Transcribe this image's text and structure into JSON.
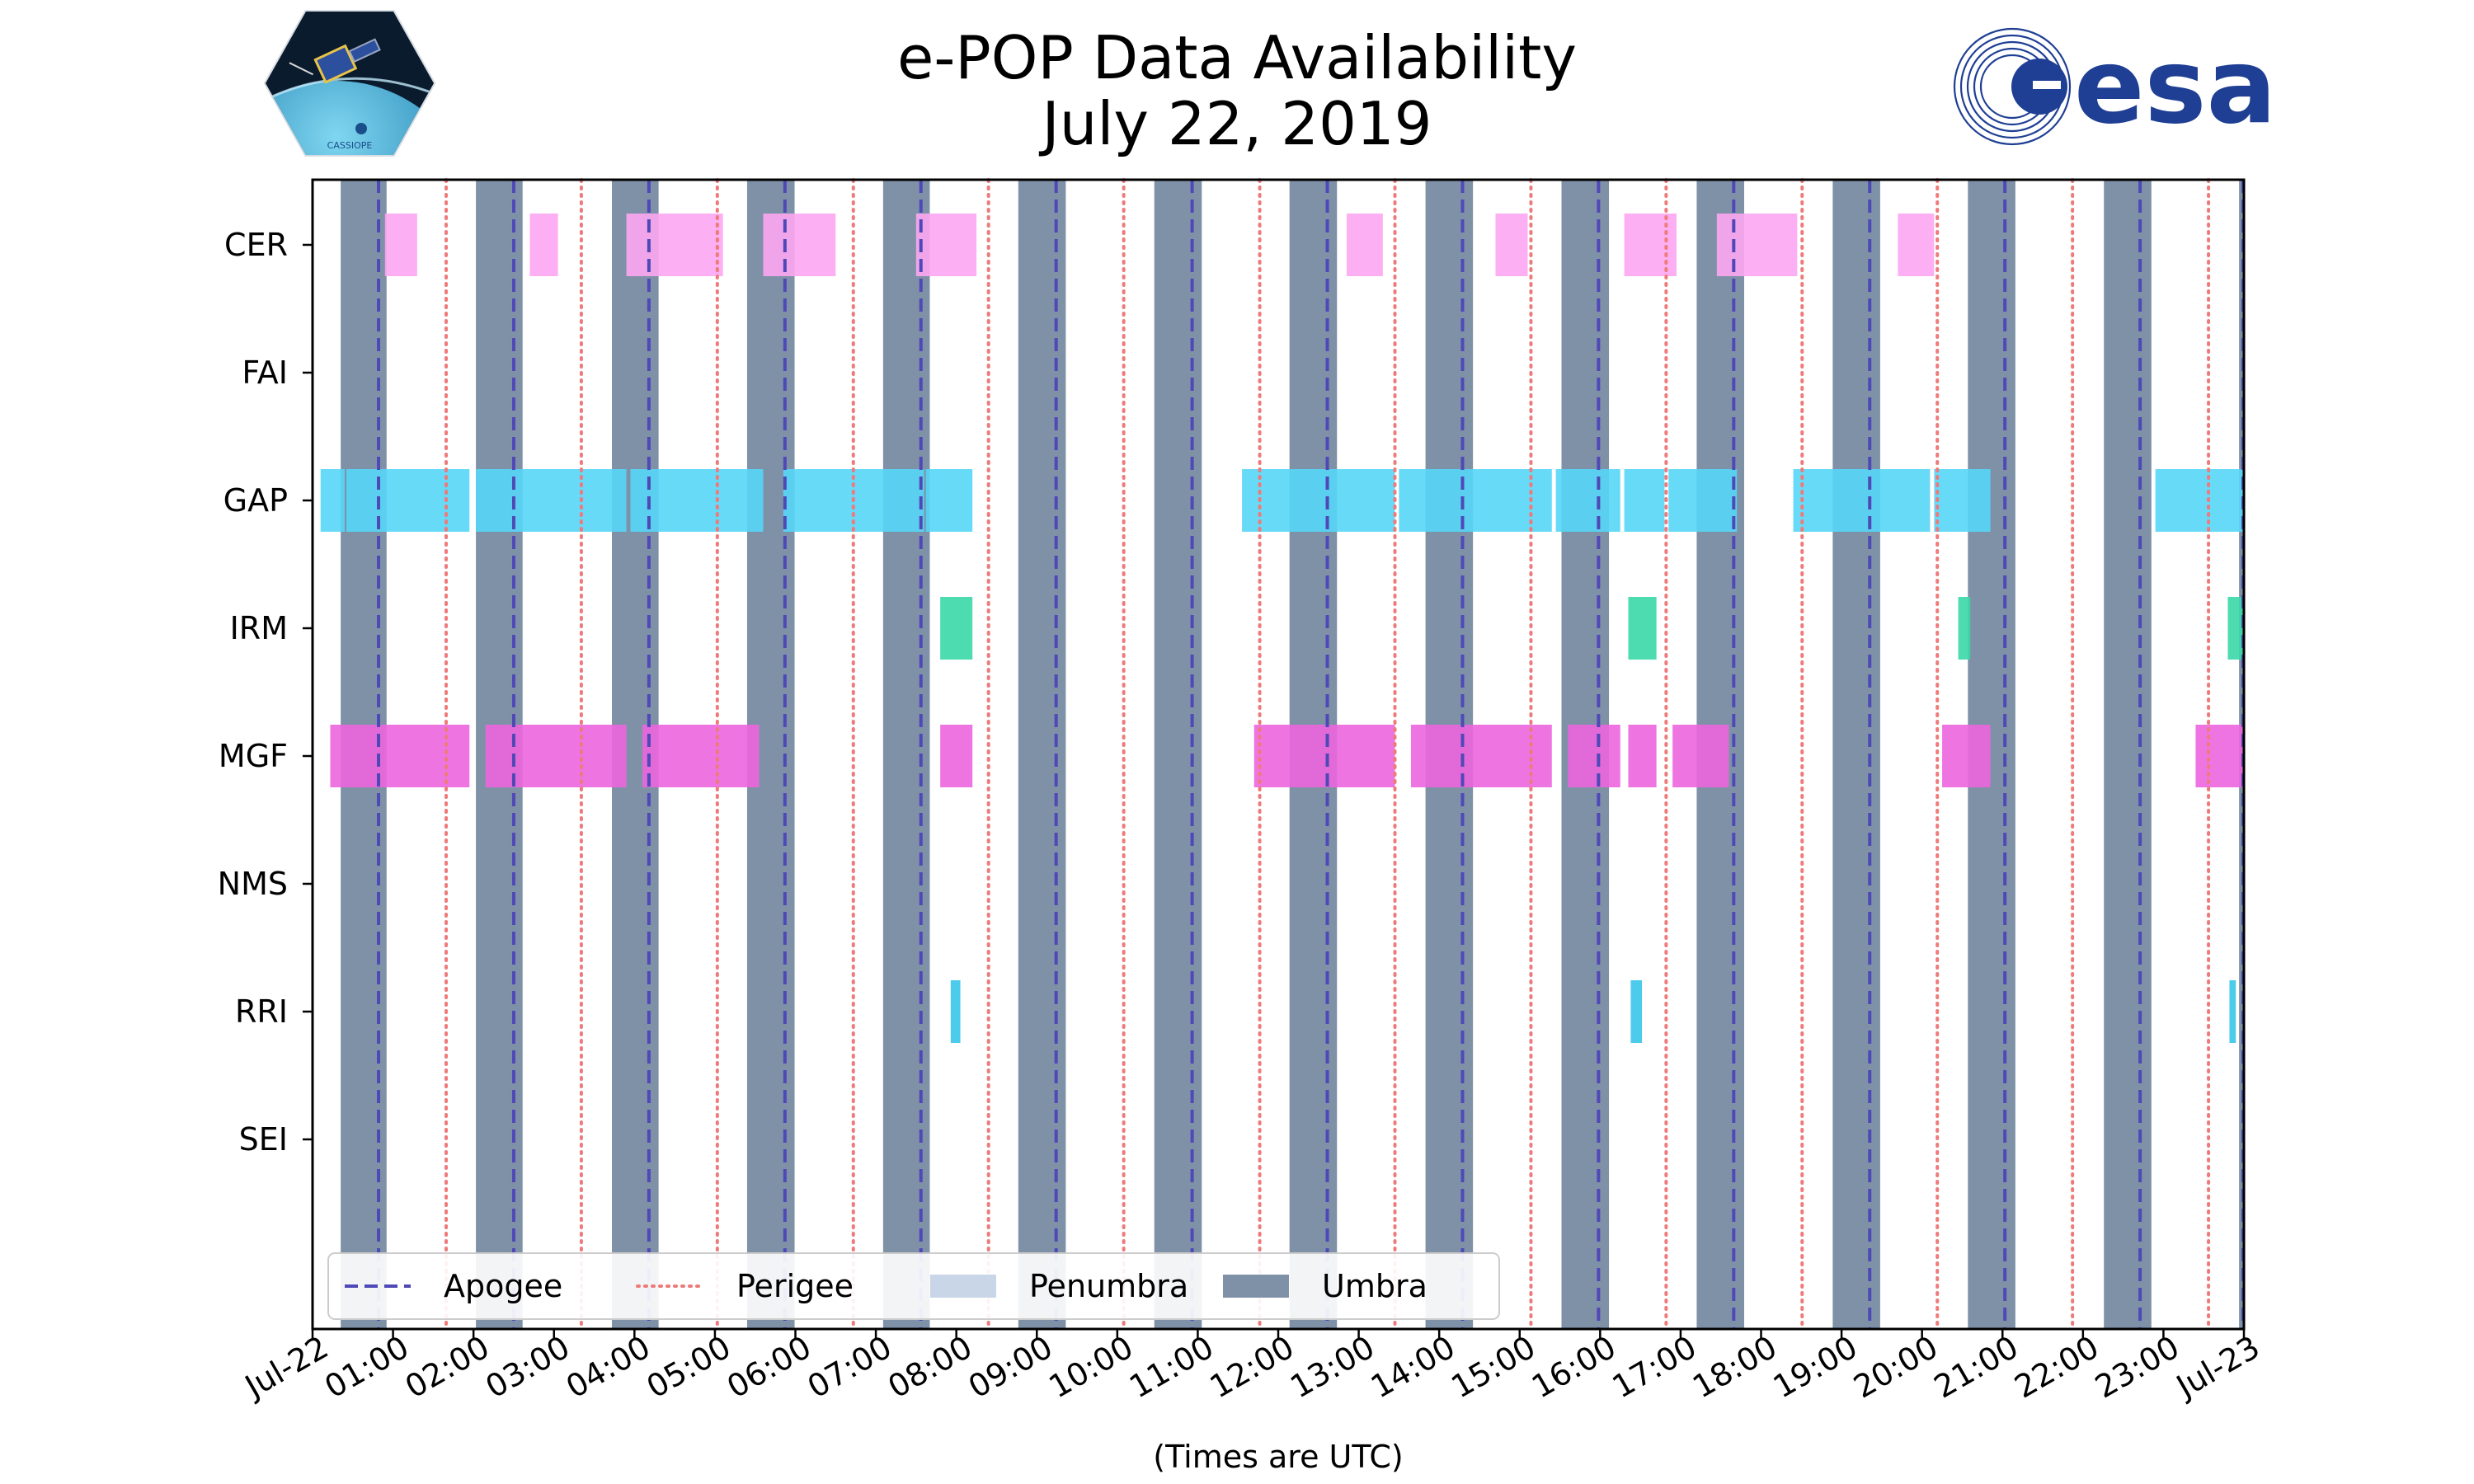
{
  "chart_data": {
    "type": "timeline",
    "title": "e-POP Data Availability",
    "subtitle": "July 22, 2019",
    "xlabel": "(Times are UTC)",
    "x_range_hours": [
      0,
      24
    ],
    "x_tick_labels": [
      "Jul-22",
      "01:00",
      "02:00",
      "03:00",
      "04:00",
      "05:00",
      "06:00",
      "07:00",
      "08:00",
      "09:00",
      "10:00",
      "11:00",
      "12:00",
      "13:00",
      "14:00",
      "15:00",
      "16:00",
      "17:00",
      "18:00",
      "19:00",
      "20:00",
      "21:00",
      "22:00",
      "23:00",
      "Jul-23"
    ],
    "instruments": [
      "CER",
      "FAI",
      "GAP",
      "IRM",
      "MGF",
      "NMS",
      "RRI",
      "SEI"
    ],
    "umbra_hours": [
      [
        0.35,
        0.92
      ],
      [
        2.03,
        2.61
      ],
      [
        3.72,
        4.3
      ],
      [
        5.4,
        5.99
      ],
      [
        7.09,
        7.67
      ],
      [
        8.77,
        9.36
      ],
      [
        10.46,
        11.05
      ],
      [
        12.14,
        12.73
      ],
      [
        13.83,
        14.42
      ],
      [
        15.52,
        16.11
      ],
      [
        17.2,
        17.79
      ],
      [
        18.89,
        19.48
      ],
      [
        20.57,
        21.16
      ],
      [
        22.26,
        22.85
      ],
      [
        23.94,
        24.0
      ]
    ],
    "apogee_hours": [
      0.82,
      2.5,
      4.18,
      5.87,
      7.56,
      9.24,
      10.93,
      12.61,
      14.29,
      15.98,
      17.66,
      19.35,
      21.03,
      22.71,
      23.99
    ],
    "perigee_hours": [
      1.66,
      3.34,
      5.03,
      6.72,
      8.4,
      10.08,
      11.77,
      13.45,
      15.14,
      16.82,
      18.51,
      20.19,
      21.87,
      23.56
    ],
    "segments": {
      "CER": [
        [
          0.9,
          1.3
        ],
        [
          2.7,
          3.05
        ],
        [
          3.9,
          5.1
        ],
        [
          5.6,
          6.5
        ],
        [
          7.5,
          8.25
        ],
        [
          12.85,
          13.3
        ],
        [
          14.7,
          15.1
        ],
        [
          16.3,
          16.95
        ],
        [
          17.45,
          18.45
        ],
        [
          19.7,
          20.15
        ]
      ],
      "FAI": [],
      "GAP": [
        [
          0.1,
          0.4
        ],
        [
          0.42,
          1.95
        ],
        [
          2.03,
          3.9
        ],
        [
          3.95,
          5.6
        ],
        [
          5.85,
          7.6
        ],
        [
          7.62,
          8.2
        ],
        [
          11.55,
          13.45
        ],
        [
          13.5,
          15.4
        ],
        [
          15.45,
          16.25
        ],
        [
          16.3,
          16.8
        ],
        [
          16.85,
          17.7
        ],
        [
          18.4,
          20.1
        ],
        [
          20.15,
          20.85
        ],
        [
          22.9,
          24.0
        ]
      ],
      "IRM": [
        [
          7.8,
          8.2
        ],
        [
          16.35,
          16.7
        ],
        [
          20.45,
          20.6
        ],
        [
          23.8,
          24.0
        ]
      ],
      "MGF": [
        [
          0.22,
          1.95
        ],
        [
          2.15,
          3.9
        ],
        [
          4.1,
          5.55
        ],
        [
          7.8,
          8.2
        ],
        [
          11.7,
          13.45
        ],
        [
          13.65,
          15.4
        ],
        [
          15.6,
          16.25
        ],
        [
          16.35,
          16.7
        ],
        [
          16.9,
          17.6
        ],
        [
          20.25,
          20.85
        ],
        [
          23.4,
          24.0
        ]
      ],
      "NMS": [],
      "RRI": [
        [
          7.93,
          8.05
        ],
        [
          16.38,
          16.52
        ],
        [
          23.82,
          23.9
        ]
      ],
      "SEI": []
    },
    "legend": [
      "Apogee",
      "Perigee",
      "Penumbra",
      "Umbra"
    ],
    "legend_position": "lower-left"
  },
  "colors": {
    "umbra": "#7f91a7",
    "penumbra": "#c9d6e8",
    "apogee": "#4f49b7",
    "perigee": "#ef7a7a",
    "CER": "#fda6f2",
    "GAP": "#57d6f7",
    "IRM": "#3ad8a7",
    "MGF": "#ec66de",
    "RRI": "#38c6e8"
  },
  "logos": {
    "cassiope_text": "CASSIOPE",
    "esa_text": "esa"
  }
}
